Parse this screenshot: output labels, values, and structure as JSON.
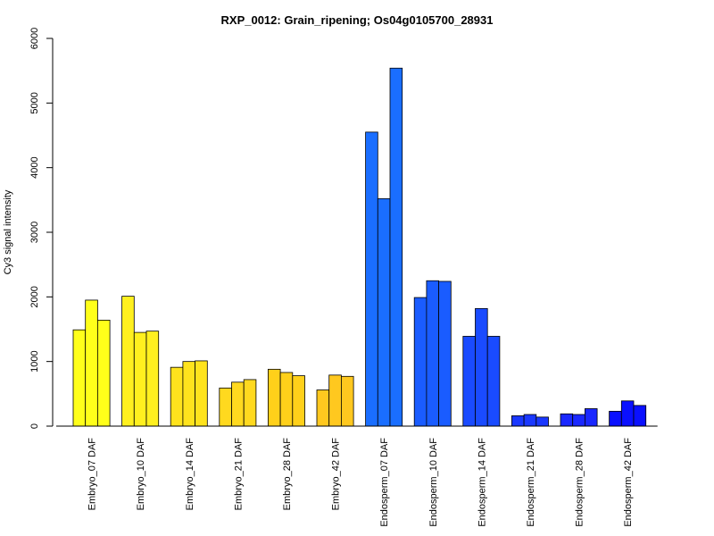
{
  "chart_data": {
    "type": "bar",
    "title": "RXP_0012: Grain_ripening; Os04g0105700_28931",
    "xlabel": "",
    "ylabel": "Cy3 signal intensity",
    "ylim": [
      0,
      6000
    ],
    "yticks": [
      0,
      1000,
      2000,
      3000,
      4000,
      5000,
      6000
    ],
    "grid": false,
    "legend": "none",
    "categories": [
      "Embryo_07 DAF",
      "Embryo_10 DAF",
      "Embryo_14 DAF",
      "Embryo_21 DAF",
      "Embryo_28 DAF",
      "Embryo_42 DAF",
      "Endosperm_07 DAF",
      "Endosperm_10 DAF",
      "Endosperm_14 DAF",
      "Endosperm_21 DAF",
      "Endosperm_28 DAF",
      "Endosperm_42 DAF"
    ],
    "replicates_per_group": 3,
    "values": [
      [
        1490,
        1950,
        1640
      ],
      [
        2010,
        1450,
        1470
      ],
      [
        910,
        1000,
        1010
      ],
      [
        590,
        680,
        720
      ],
      [
        880,
        830,
        780
      ],
      [
        560,
        790,
        770
      ],
      [
        4550,
        3520,
        5540
      ],
      [
        1990,
        2250,
        2240
      ],
      [
        1390,
        1820,
        1390
      ],
      [
        160,
        180,
        140
      ],
      [
        190,
        180,
        270
      ],
      [
        230,
        390,
        320
      ]
    ],
    "colors": [
      "#FFFF1A",
      "#FFF01F",
      "#FFE31D",
      "#FFD91F",
      "#FFD01A",
      "#FFC81F",
      "#1A6EFF",
      "#1A5CFF",
      "#1A4BFF",
      "#1A38FF",
      "#1A28FF",
      "#0A10FF"
    ]
  }
}
